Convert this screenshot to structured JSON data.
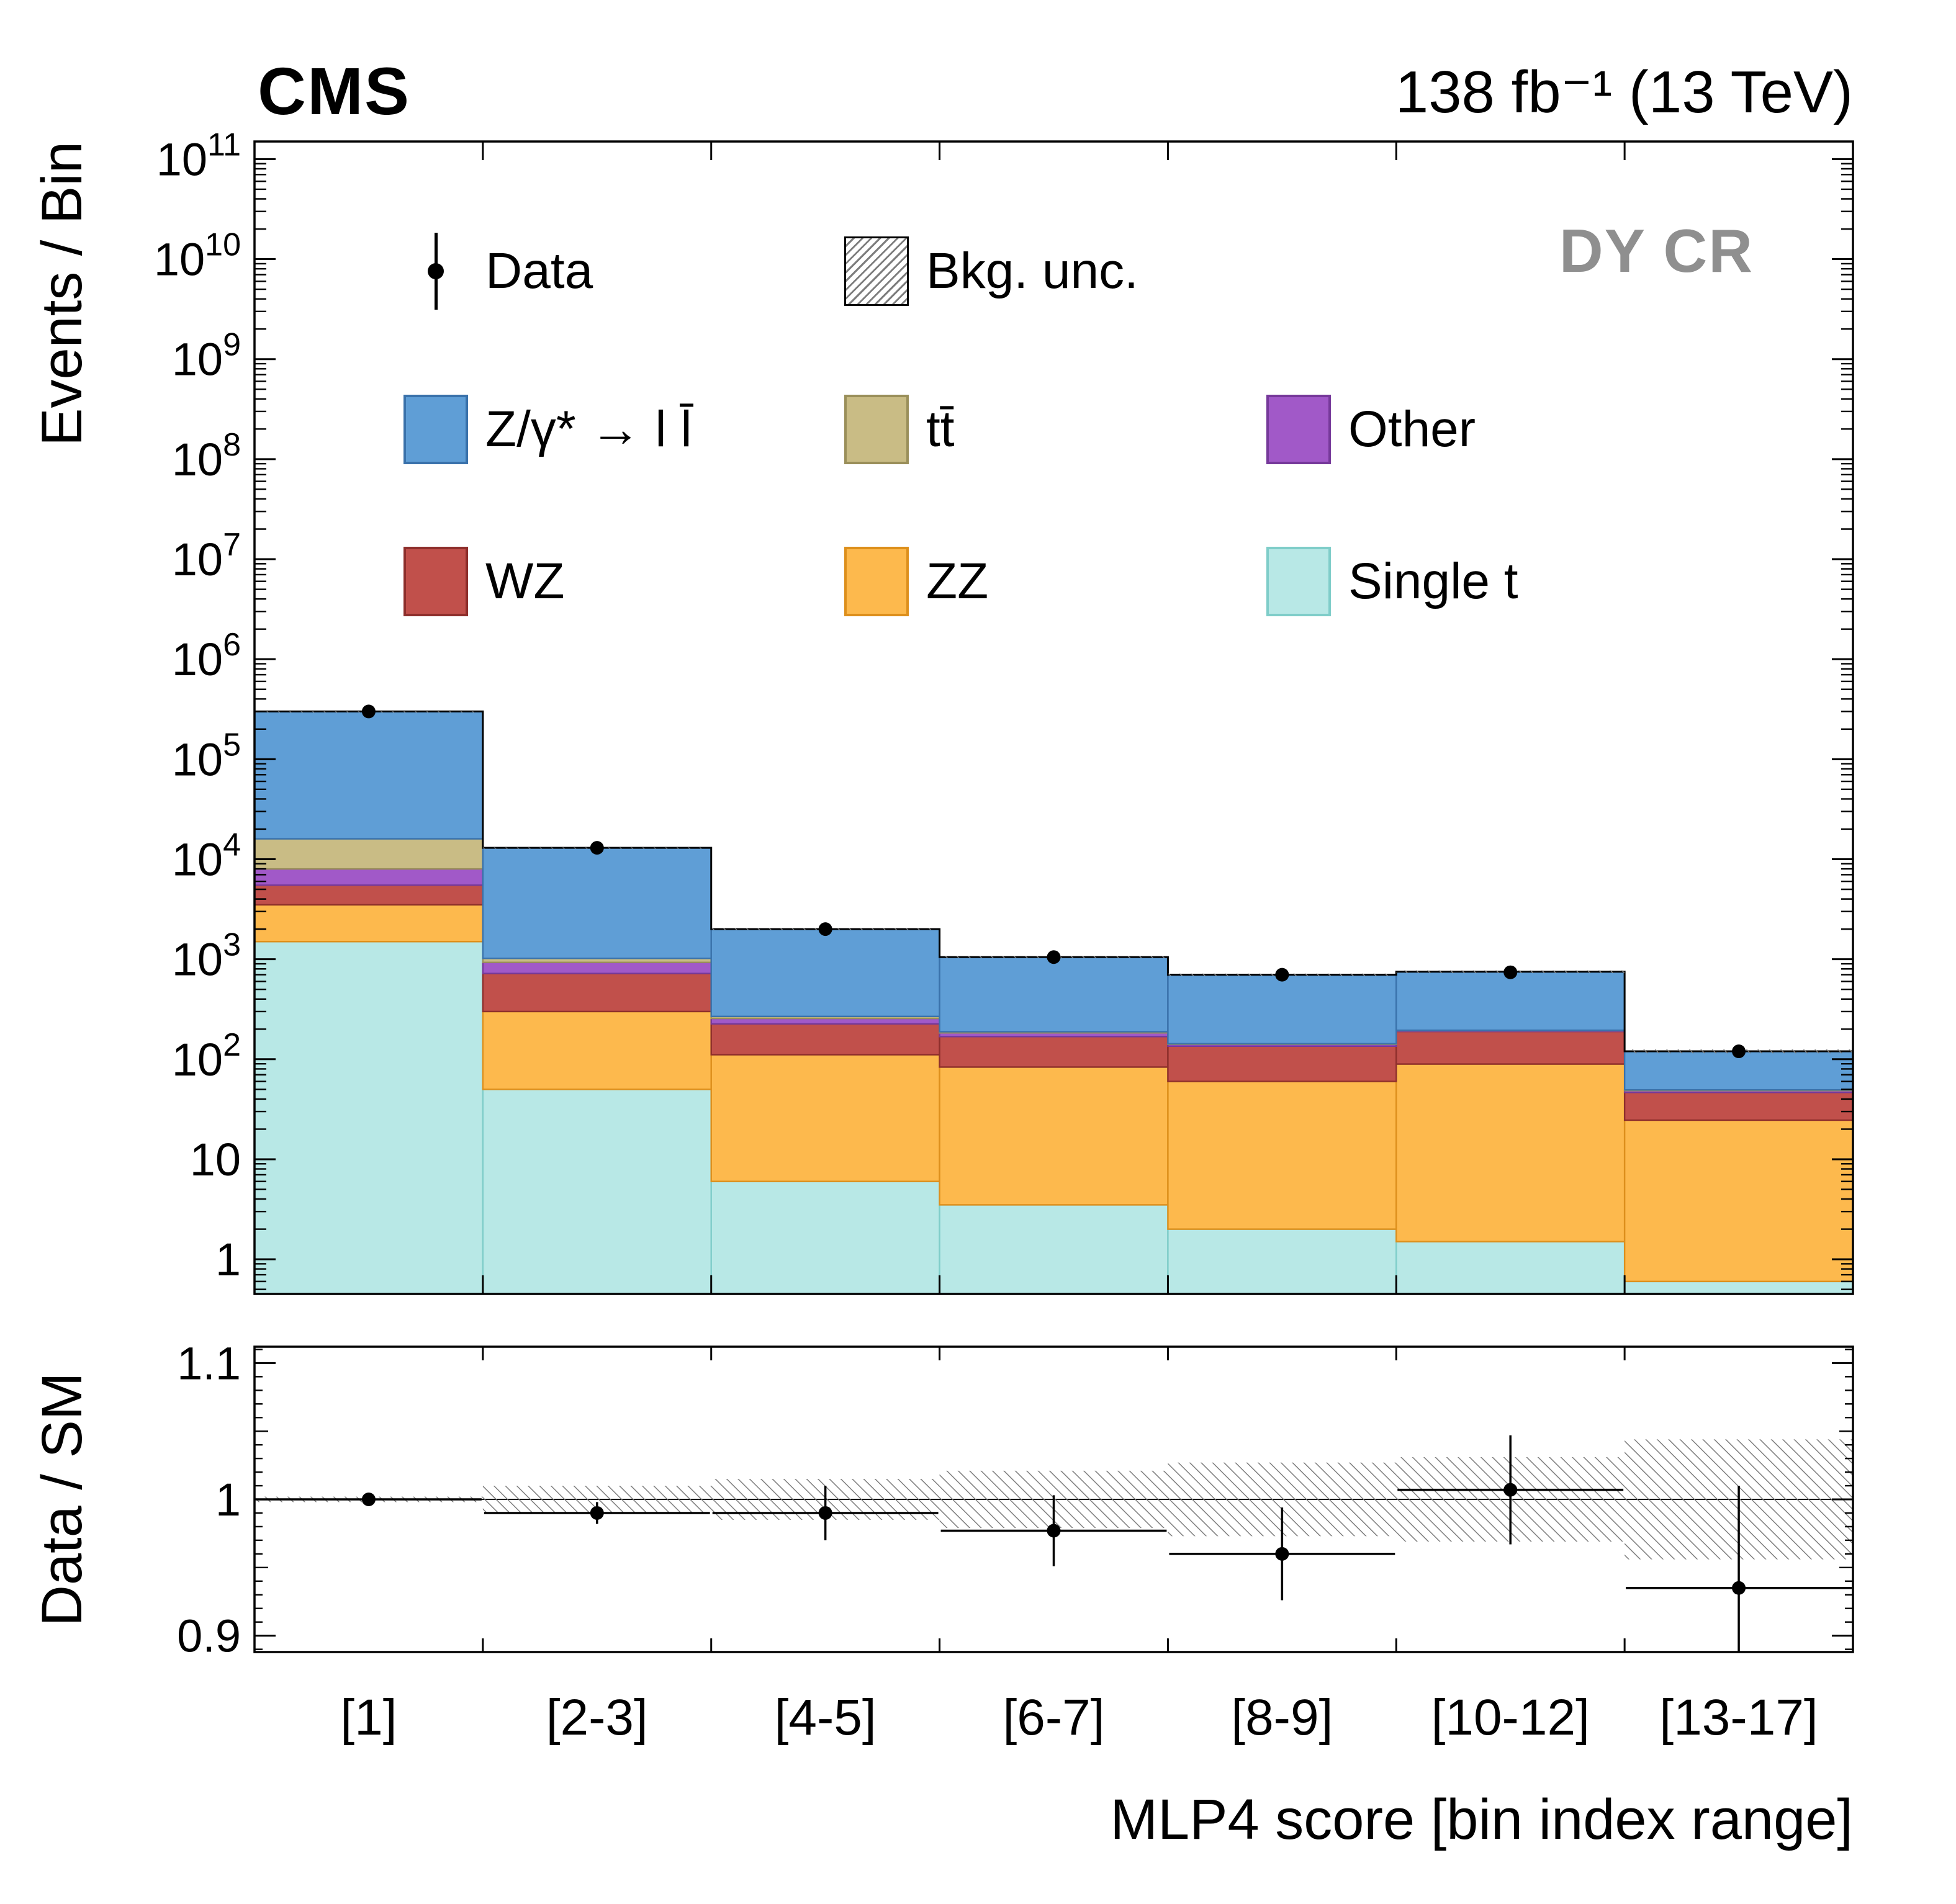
{
  "header": {
    "experiment": "CMS",
    "lumi": "138 fb⁻¹ (13 TeV)",
    "region_label": "DY CR"
  },
  "chart_data": {
    "type": "bar",
    "stacked": true,
    "yscale_main": "log",
    "legend_position": "top-inside",
    "grid": false,
    "x_title": "MLP4 score [bin index range]",
    "y_title_main": "Events / Bin",
    "y_title_ratio": "Data / SM",
    "categories": [
      "[1]",
      "[2-3]",
      "[4-5]",
      "[6-7]",
      "[8-9]",
      "[10-12]",
      "[13-17]"
    ],
    "ylog_min": 0.45,
    "ylog_max": 150000000000.0,
    "y_tick_exponents": [
      0,
      1,
      2,
      3,
      4,
      5,
      6,
      7,
      8,
      9,
      10,
      11
    ],
    "series": [
      {
        "name": "Single t",
        "color": "#b8e8e6",
        "edge": "#7fcdc9",
        "values": [
          1500,
          50,
          6,
          3.5,
          2,
          1.5,
          0.6
        ]
      },
      {
        "name": "ZZ",
        "color": "#fdb94d",
        "edge": "#dd8f1c",
        "values": [
          2000,
          250,
          105,
          80,
          58,
          88,
          24
        ]
      },
      {
        "name": "WZ",
        "color": "#c1504b",
        "edge": "#8e2f2c",
        "values": [
          2000,
          420,
          115,
          85,
          75,
          100,
          22
        ]
      },
      {
        "name": "Other",
        "color": "#a159c8",
        "edge": "#76399a",
        "values": [
          2500,
          210,
          30,
          15,
          6,
          4,
          2
        ]
      },
      {
        "name": "tt̄",
        "color": "#c9bc85",
        "edge": "#9a8f5a",
        "values": [
          8000,
          90,
          12,
          5,
          2,
          1.5,
          0.8
        ]
      },
      {
        "name": "Z/γ* → l l̄",
        "color": "#5f9ed6",
        "edge": "#3a72ab",
        "values": [
          284000,
          11980,
          1732,
          861.5,
          557,
          555,
          70.6
        ]
      }
    ],
    "data_points": [
      300000,
      13000,
      2000,
      1050,
      700,
      740,
      120
    ],
    "bkg_unc_frac": [
      0.002,
      0.01,
      0.015,
      0.021,
      0.027,
      0.031,
      0.044
    ],
    "ratio": {
      "ymin": 0.888,
      "ymax": 1.112,
      "ticks": [
        0.9,
        1.0,
        1.1
      ],
      "tick_labels": [
        "0.9",
        "1",
        "1.1"
      ],
      "values": [
        1.0,
        0.99,
        0.99,
        0.977,
        0.96,
        1.007,
        0.935
      ],
      "errors": [
        0.004,
        0.008,
        0.02,
        0.026,
        0.034,
        0.04,
        0.075
      ]
    },
    "legend": {
      "items": [
        {
          "label": "Data",
          "type": "marker"
        },
        {
          "label": "Bkg. unc.",
          "type": "hatch"
        },
        {
          "label": "Z/γ* → l l̄",
          "series": 5
        },
        {
          "label": "tt̄",
          "series": 4
        },
        {
          "label": "Other",
          "series": 3
        },
        {
          "label": "WZ",
          "series": 2
        },
        {
          "label": "ZZ",
          "series": 1
        },
        {
          "label": "Single t",
          "series": 0
        }
      ]
    }
  }
}
